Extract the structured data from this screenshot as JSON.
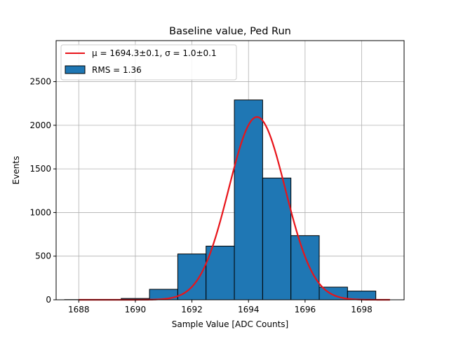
{
  "chart_data": {
    "type": "bar",
    "title": "Baseline value, Ped Run",
    "xlabel": "Sample Value [ADC Counts]",
    "ylabel": "Events",
    "xlim": [
      1687.2,
      1699.5
    ],
    "ylim": [
      0,
      2970
    ],
    "x_ticks": [
      1688,
      1690,
      1692,
      1694,
      1696,
      1698
    ],
    "y_ticks": [
      0,
      500,
      1000,
      1500,
      2000,
      2500
    ],
    "grid": true,
    "legend_position": "upper-left",
    "bins": [
      {
        "x0": 1687.5,
        "x1": 1688.5,
        "value": 2
      },
      {
        "x0": 1688.5,
        "x1": 1689.5,
        "value": 2
      },
      {
        "x0": 1689.5,
        "x1": 1690.5,
        "value": 15
      },
      {
        "x0": 1690.5,
        "x1": 1691.5,
        "value": 120
      },
      {
        "x0": 1691.5,
        "x1": 1692.5,
        "value": 525
      },
      {
        "x0": 1692.5,
        "x1": 1693.5,
        "value": 615
      },
      {
        "x0": 1693.5,
        "x1": 1694.5,
        "value": 2290
      },
      {
        "x0": 1694.5,
        "x1": 1695.5,
        "value": 1395
      },
      {
        "x0": 1695.5,
        "x1": 1696.5,
        "value": 735
      },
      {
        "x0": 1696.5,
        "x1": 1697.5,
        "value": 145
      },
      {
        "x0": 1697.5,
        "x1": 1698.5,
        "value": 100
      }
    ],
    "fit": {
      "type": "gaussian",
      "mu": 1694.3,
      "sigma": 1.0,
      "amplitude": 2095,
      "x_range": [
        1688,
        1699
      ]
    },
    "legend": {
      "fit_label": "μ = 1694.3±0.1, σ = 1.0±0.1",
      "hist_label": "RMS = 1.36"
    },
    "colors": {
      "bar_fill": "#1f77b4",
      "bar_edge": "#000000",
      "fit_line": "#e8141a"
    }
  }
}
